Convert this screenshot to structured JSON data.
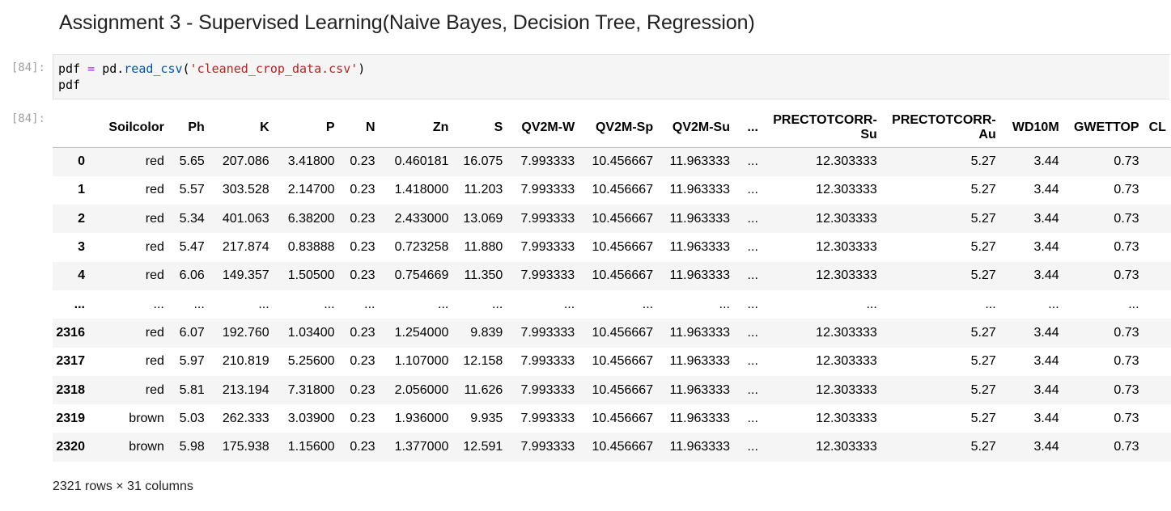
{
  "heading": "Assignment 3 - Supervised Learning(Naive Bayes, Decision Tree, Regression)",
  "input_prompt": "[84]:",
  "output_prompt": "[84]:",
  "code": {
    "line1": {
      "var": "pdf",
      "op": "=",
      "mod": "pd.",
      "fn": "read_csv",
      "open": "(",
      "str": "'cleaned_crop_data.csv'",
      "close": ")"
    },
    "line2": "pdf"
  },
  "table": {
    "columns": [
      "",
      "Soilcolor",
      "Ph",
      "K",
      "P",
      "N",
      "Zn",
      "S",
      "QV2M-W",
      "QV2M-Sp",
      "QV2M-Su",
      "...",
      "PRECTOTCORR-Su",
      "PRECTOTCORR-Au",
      "WD10M",
      "GWETTOP",
      "CL"
    ],
    "rows": [
      [
        "0",
        "red",
        "5.65",
        "207.086",
        "3.41800",
        "0.23",
        "0.460181",
        "16.075",
        "7.993333",
        "10.456667",
        "11.963333",
        "...",
        "12.303333",
        "5.27",
        "3.44",
        "0.73",
        ""
      ],
      [
        "1",
        "red",
        "5.57",
        "303.528",
        "2.14700",
        "0.23",
        "1.418000",
        "11.203",
        "7.993333",
        "10.456667",
        "11.963333",
        "...",
        "12.303333",
        "5.27",
        "3.44",
        "0.73",
        ""
      ],
      [
        "2",
        "red",
        "5.34",
        "401.063",
        "6.38200",
        "0.23",
        "2.433000",
        "13.069",
        "7.993333",
        "10.456667",
        "11.963333",
        "...",
        "12.303333",
        "5.27",
        "3.44",
        "0.73",
        ""
      ],
      [
        "3",
        "red",
        "5.47",
        "217.874",
        "0.83888",
        "0.23",
        "0.723258",
        "11.880",
        "7.993333",
        "10.456667",
        "11.963333",
        "...",
        "12.303333",
        "5.27",
        "3.44",
        "0.73",
        ""
      ],
      [
        "4",
        "red",
        "6.06",
        "149.357",
        "1.50500",
        "0.23",
        "0.754669",
        "11.350",
        "7.993333",
        "10.456667",
        "11.963333",
        "...",
        "12.303333",
        "5.27",
        "3.44",
        "0.73",
        ""
      ],
      [
        "...",
        "...",
        "...",
        "...",
        "...",
        "...",
        "...",
        "...",
        "...",
        "...",
        "...",
        "...",
        "...",
        "...",
        "...",
        "...",
        ""
      ],
      [
        "2316",
        "red",
        "6.07",
        "192.760",
        "1.03400",
        "0.23",
        "1.254000",
        "9.839",
        "7.993333",
        "10.456667",
        "11.963333",
        "...",
        "12.303333",
        "5.27",
        "3.44",
        "0.73",
        ""
      ],
      [
        "2317",
        "red",
        "5.97",
        "210.819",
        "5.25600",
        "0.23",
        "1.107000",
        "12.158",
        "7.993333",
        "10.456667",
        "11.963333",
        "...",
        "12.303333",
        "5.27",
        "3.44",
        "0.73",
        ""
      ],
      [
        "2318",
        "red",
        "5.81",
        "213.194",
        "7.31800",
        "0.23",
        "2.056000",
        "11.626",
        "7.993333",
        "10.456667",
        "11.963333",
        "...",
        "12.303333",
        "5.27",
        "3.44",
        "0.73",
        ""
      ],
      [
        "2319",
        "brown",
        "5.03",
        "262.333",
        "3.03900",
        "0.23",
        "1.936000",
        "9.935",
        "7.993333",
        "10.456667",
        "11.963333",
        "...",
        "12.303333",
        "5.27",
        "3.44",
        "0.73",
        ""
      ],
      [
        "2320",
        "brown",
        "5.98",
        "175.938",
        "1.15600",
        "0.23",
        "1.377000",
        "12.591",
        "7.993333",
        "10.456667",
        "11.963333",
        "...",
        "12.303333",
        "5.27",
        "3.44",
        "0.73",
        ""
      ]
    ]
  },
  "shape_text": "2321 rows × 31 columns"
}
